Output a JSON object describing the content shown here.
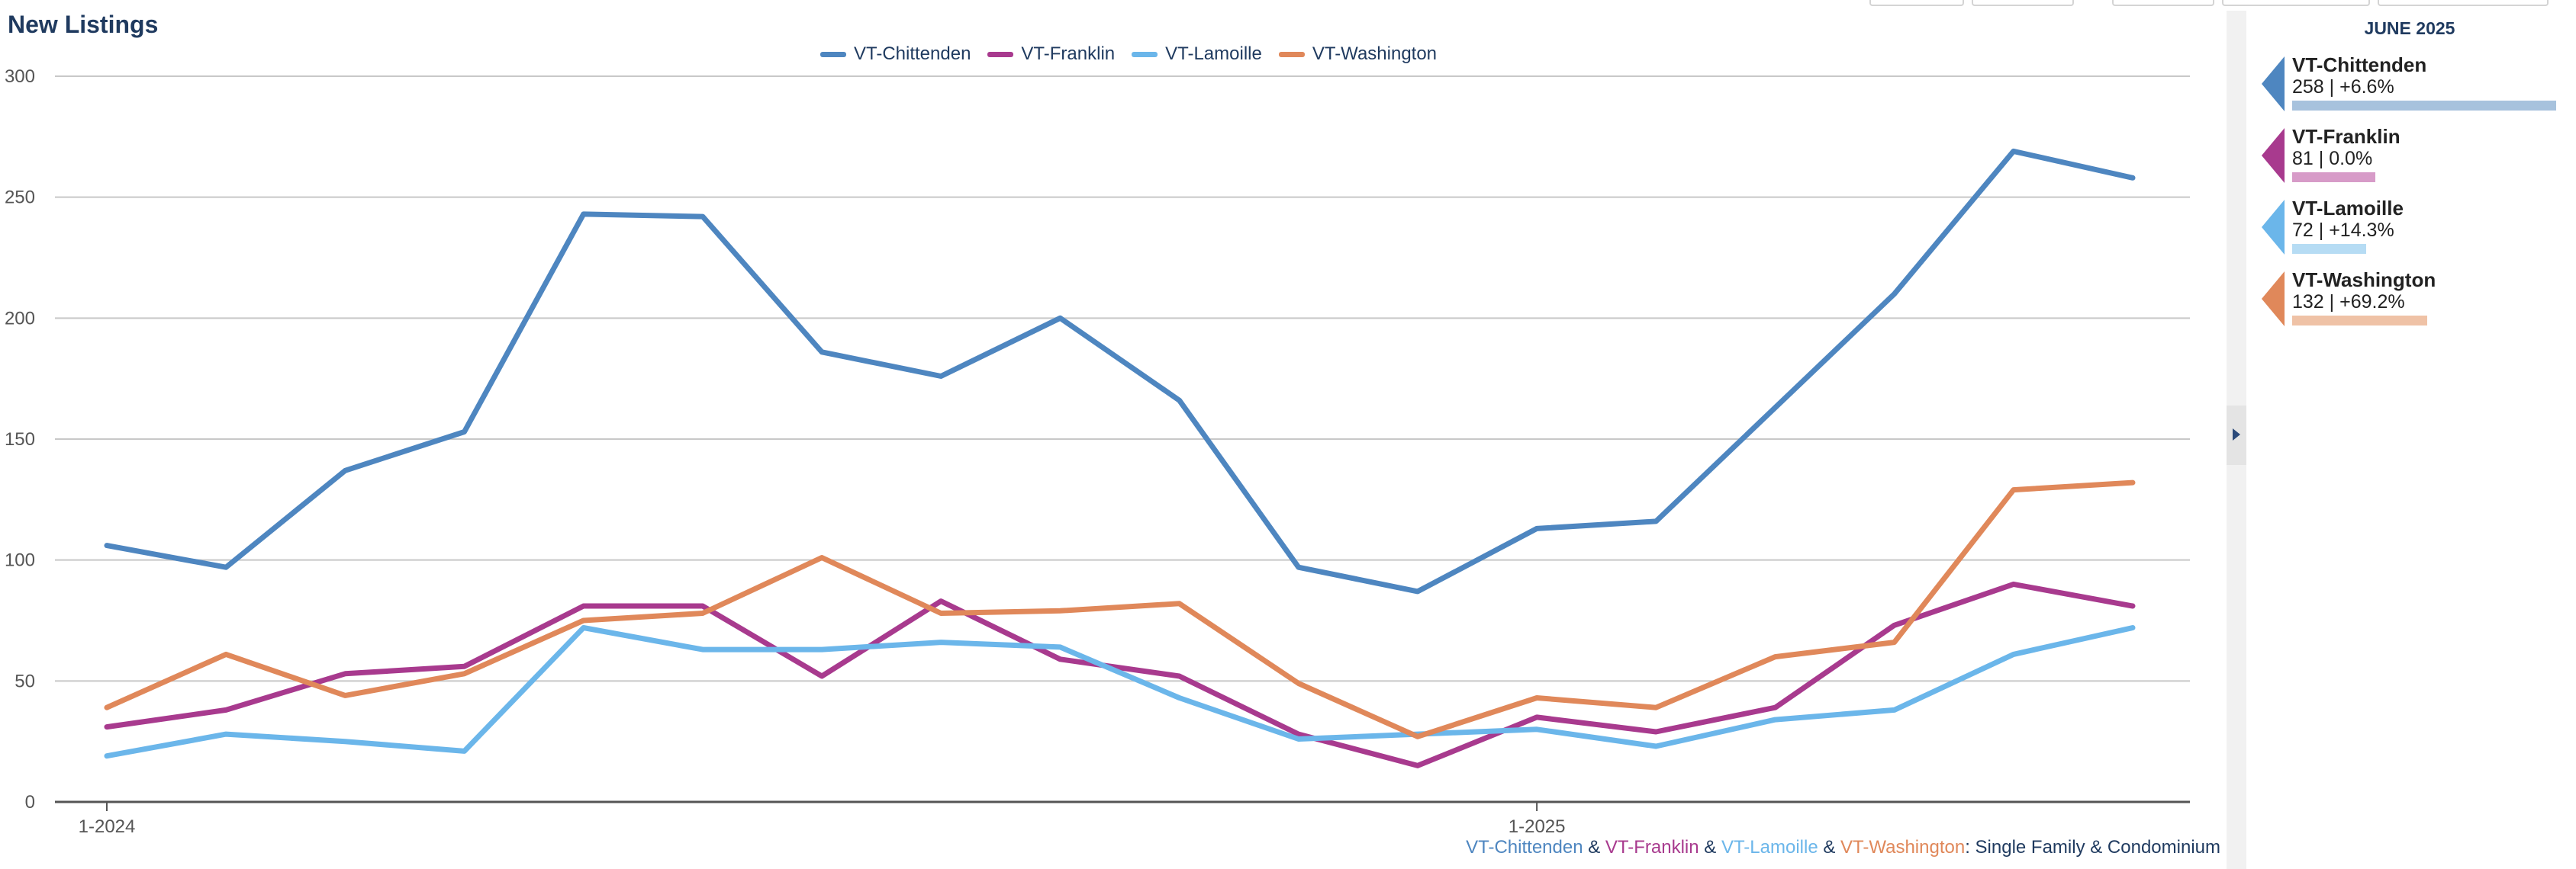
{
  "title": "New Listings",
  "chart_data": {
    "type": "line",
    "x": [
      "1-2024",
      "2-2024",
      "3-2024",
      "4-2024",
      "5-2024",
      "6-2024",
      "7-2024",
      "8-2024",
      "9-2024",
      "10-2024",
      "11-2024",
      "12-2024",
      "1-2025",
      "2-2025",
      "3-2025",
      "4-2025",
      "5-2025",
      "6-2025"
    ],
    "x_tick_labels": [
      "1-2024",
      "1-2025"
    ],
    "ylim": [
      0,
      300
    ],
    "y_ticks": [
      0,
      50,
      100,
      150,
      200,
      250,
      300
    ],
    "grid": true,
    "legend_position": "top-center",
    "series": [
      {
        "name": "VT-Chittenden",
        "color": "#4e86c0",
        "values": [
          106,
          97,
          137,
          153,
          243,
          242,
          186,
          176,
          200,
          166,
          97,
          87,
          113,
          116,
          163,
          210,
          269,
          258
        ]
      },
      {
        "name": "VT-Franklin",
        "color": "#a83a8e",
        "values": [
          31,
          38,
          53,
          56,
          81,
          81,
          52,
          83,
          59,
          52,
          28,
          15,
          35,
          29,
          39,
          73,
          90,
          81
        ]
      },
      {
        "name": "VT-Lamoille",
        "color": "#6bb6ea",
        "values": [
          19,
          28,
          25,
          21,
          72,
          63,
          63,
          66,
          64,
          43,
          26,
          28,
          30,
          23,
          34,
          38,
          61,
          72
        ]
      },
      {
        "name": "VT-Washington",
        "color": "#e0885a",
        "values": [
          39,
          61,
          44,
          53,
          75,
          78,
          101,
          78,
          79,
          82,
          49,
          27,
          43,
          39,
          60,
          66,
          129,
          132
        ]
      }
    ]
  },
  "footnote": {
    "parts": [
      {
        "text": "VT-Chittenden",
        "color": "#4e86c0"
      },
      {
        "text": " & ",
        "color": "#1f3a5f"
      },
      {
        "text": "VT-Franklin",
        "color": "#a83a8e"
      },
      {
        "text": " & ",
        "color": "#1f3a5f"
      },
      {
        "text": "VT-Lamoille",
        "color": "#6bb6ea"
      },
      {
        "text": " & ",
        "color": "#1f3a5f"
      },
      {
        "text": "VT-Washington",
        "color": "#e0885a"
      },
      {
        "text": ": Single Family & Condominium",
        "color": "#1f3a5f"
      }
    ]
  },
  "side_panel": {
    "header": "JUNE 2025",
    "items": [
      {
        "name": "VT-Chittenden",
        "value": "258 | +6.6%",
        "color": "#4e86c0",
        "bar_color": "#a7c2dd",
        "bar_fraction": 1.0
      },
      {
        "name": "VT-Franklin",
        "value": "81 | 0.0%",
        "color": "#a83a8e",
        "bar_color": "#d79bc8",
        "bar_fraction": 0.314
      },
      {
        "name": "VT-Lamoille",
        "value": "72 | +14.3%",
        "color": "#6bb6ea",
        "bar_color": "#b6dcf4",
        "bar_fraction": 0.279
      },
      {
        "name": "VT-Washington",
        "value": "132 | +69.2%",
        "color": "#e0885a",
        "bar_color": "#efc2a6",
        "bar_fraction": 0.512
      }
    ]
  }
}
